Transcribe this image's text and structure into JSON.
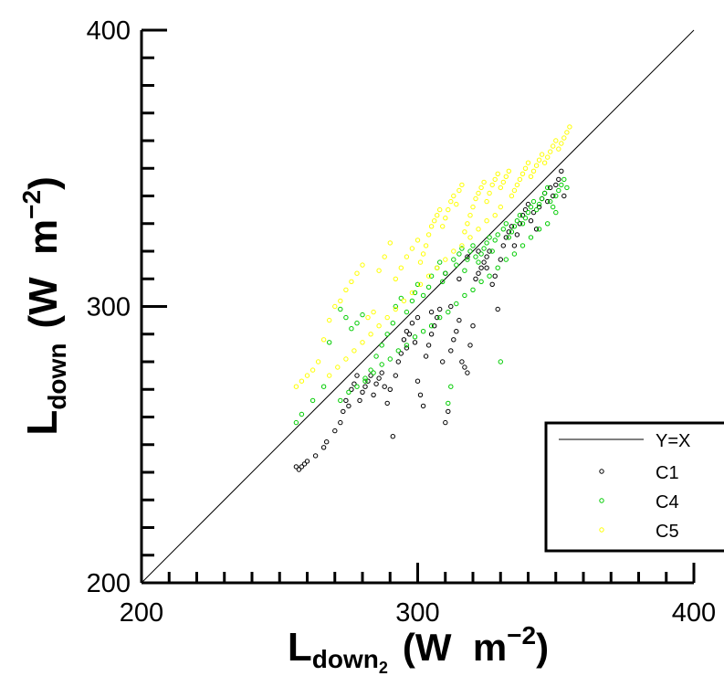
{
  "chart_data": {
    "type": "scatter",
    "xlim": [
      200,
      400
    ],
    "ylim": [
      200,
      400
    ],
    "x_ticks": [
      "200",
      "300",
      "400"
    ],
    "y_ticks": [
      "200",
      "300",
      "400"
    ],
    "xlabel": {
      "main": "L",
      "sub": "down",
      "subsub": "2",
      "unit_open": "(W  m",
      "unit_exp": "−2",
      "unit_close": ")"
    },
    "ylabel": {
      "main": "L",
      "sub": "down",
      "unit_open": "(W  m",
      "unit_exp": "−2",
      "unit_close": ")"
    },
    "reference_line": {
      "name": "Y=X",
      "from": [
        200,
        200
      ],
      "to": [
        400,
        400
      ],
      "color": "#000000"
    },
    "legend_position": "bottom-right",
    "series": [
      {
        "name": "C1",
        "color": "#000000",
        "points": [
          [
            256,
            242
          ],
          [
            257,
            241
          ],
          [
            258,
            242
          ],
          [
            259,
            243
          ],
          [
            260,
            244
          ],
          [
            263,
            246
          ],
          [
            267,
            251
          ],
          [
            266,
            249
          ],
          [
            270,
            255
          ],
          [
            272,
            258
          ],
          [
            273,
            262
          ],
          [
            274,
            266
          ],
          [
            275,
            264
          ],
          [
            276,
            270
          ],
          [
            277,
            272
          ],
          [
            278,
            275
          ],
          [
            279,
            266
          ],
          [
            280,
            269
          ],
          [
            281,
            271
          ],
          [
            282,
            273
          ],
          [
            283,
            275
          ],
          [
            284,
            268
          ],
          [
            285,
            272
          ],
          [
            286,
            274
          ],
          [
            287,
            276
          ],
          [
            288,
            271
          ],
          [
            289,
            265
          ],
          [
            290,
            270
          ],
          [
            291,
            253
          ],
          [
            292,
            275
          ],
          [
            293,
            280
          ],
          [
            294,
            283
          ],
          [
            295,
            288
          ],
          [
            296,
            285
          ],
          [
            297,
            290
          ],
          [
            298,
            294
          ],
          [
            299,
            287
          ],
          [
            300,
            273
          ],
          [
            301,
            268
          ],
          [
            302,
            264
          ],
          [
            303,
            282
          ],
          [
            304,
            286
          ],
          [
            305,
            290
          ],
          [
            306,
            293
          ],
          [
            307,
            296
          ],
          [
            308,
            299
          ],
          [
            309,
            280
          ],
          [
            310,
            258
          ],
          [
            311,
            262
          ],
          [
            312,
            284
          ],
          [
            313,
            288
          ],
          [
            314,
            291
          ],
          [
            315,
            295
          ],
          [
            316,
            280
          ],
          [
            317,
            278
          ],
          [
            318,
            276
          ],
          [
            319,
            286
          ],
          [
            320,
            293
          ],
          [
            321,
            310
          ],
          [
            322,
            312
          ],
          [
            323,
            314
          ],
          [
            324,
            316
          ],
          [
            325,
            318
          ],
          [
            326,
            320
          ],
          [
            327,
            308
          ],
          [
            328,
            311
          ],
          [
            329,
            299
          ],
          [
            330,
            317
          ],
          [
            331,
            322
          ],
          [
            332,
            325
          ],
          [
            333,
            327
          ],
          [
            334,
            329
          ],
          [
            335,
            322
          ],
          [
            336,
            326
          ],
          [
            337,
            330
          ],
          [
            338,
            333
          ],
          [
            339,
            335
          ],
          [
            340,
            337
          ],
          [
            341,
            331
          ],
          [
            342,
            334
          ],
          [
            343,
            328
          ],
          [
            344,
            336
          ],
          [
            345,
            339
          ],
          [
            346,
            341
          ],
          [
            347,
            338
          ],
          [
            348,
            343
          ],
          [
            349,
            340
          ],
          [
            350,
            344
          ],
          [
            351,
            346
          ],
          [
            352,
            349
          ],
          [
            353,
            340
          ],
          [
            318,
            318
          ],
          [
            322,
            320
          ],
          [
            325,
            314
          ],
          [
            310,
            312
          ],
          [
            315,
            310
          ],
          [
            312,
            300
          ],
          [
            305,
            298
          ],
          [
            300,
            296
          ],
          [
            296,
            291
          ]
        ]
      },
      {
        "name": "C4",
        "color": "#00cc00",
        "points": [
          [
            256,
            258
          ],
          [
            258,
            261
          ],
          [
            262,
            266
          ],
          [
            266,
            271
          ],
          [
            268,
            287
          ],
          [
            272,
            299
          ],
          [
            274,
            296
          ],
          [
            276,
            292
          ],
          [
            278,
            294
          ],
          [
            280,
            297
          ],
          [
            281,
            273
          ],
          [
            283,
            277
          ],
          [
            285,
            282
          ],
          [
            287,
            286
          ],
          [
            289,
            290
          ],
          [
            291,
            294
          ],
          [
            292,
            300
          ],
          [
            294,
            303
          ],
          [
            296,
            298
          ],
          [
            298,
            302
          ],
          [
            299,
            305
          ],
          [
            300,
            308
          ],
          [
            302,
            304
          ],
          [
            304,
            307
          ],
          [
            305,
            311
          ],
          [
            307,
            314
          ],
          [
            308,
            316
          ],
          [
            309,
            309
          ],
          [
            310,
            312
          ],
          [
            311,
            265
          ],
          [
            312,
            271
          ],
          [
            313,
            317
          ],
          [
            314,
            315
          ],
          [
            315,
            319
          ],
          [
            316,
            321
          ],
          [
            317,
            313
          ],
          [
            318,
            317
          ],
          [
            319,
            320
          ],
          [
            320,
            322
          ],
          [
            321,
            318
          ],
          [
            322,
            316
          ],
          [
            323,
            319
          ],
          [
            324,
            321
          ],
          [
            325,
            323
          ],
          [
            326,
            325
          ],
          [
            327,
            320
          ],
          [
            328,
            324
          ],
          [
            329,
            326
          ],
          [
            330,
            280
          ],
          [
            331,
            328
          ],
          [
            332,
            330
          ],
          [
            333,
            325
          ],
          [
            334,
            327
          ],
          [
            335,
            329
          ],
          [
            336,
            331
          ],
          [
            337,
            333
          ],
          [
            338,
            330
          ],
          [
            339,
            332
          ],
          [
            340,
            334
          ],
          [
            341,
            336
          ],
          [
            342,
            338
          ],
          [
            343,
            335
          ],
          [
            344,
            337
          ],
          [
            345,
            339
          ],
          [
            346,
            341
          ],
          [
            347,
            343
          ],
          [
            348,
            338
          ],
          [
            349,
            336
          ],
          [
            350,
            340
          ],
          [
            351,
            342
          ],
          [
            352,
            344
          ],
          [
            353,
            346
          ],
          [
            354,
            343
          ],
          [
            350,
            334
          ],
          [
            347,
            330
          ],
          [
            344,
            328
          ],
          [
            341,
            325
          ],
          [
            338,
            322
          ],
          [
            335,
            319
          ],
          [
            332,
            317
          ],
          [
            329,
            314
          ],
          [
            326,
            311
          ],
          [
            323,
            309
          ],
          [
            320,
            306
          ],
          [
            317,
            304
          ],
          [
            314,
            301
          ],
          [
            311,
            298
          ],
          [
            308,
            296
          ],
          [
            305,
            293
          ],
          [
            302,
            291
          ],
          [
            299,
            289
          ],
          [
            296,
            286
          ],
          [
            293,
            284
          ],
          [
            290,
            281
          ],
          [
            287,
            279
          ],
          [
            284,
            276
          ],
          [
            281,
            274
          ],
          [
            278,
            271
          ],
          [
            275,
            269
          ],
          [
            272,
            266
          ]
        ]
      },
      {
        "name": "C5",
        "color": "#ffff00",
        "points": [
          [
            256,
            271
          ],
          [
            258,
            273
          ],
          [
            260,
            275
          ],
          [
            262,
            277
          ],
          [
            264,
            280
          ],
          [
            266,
            288
          ],
          [
            268,
            295
          ],
          [
            270,
            300
          ],
          [
            272,
            302
          ],
          [
            274,
            306
          ],
          [
            276,
            309
          ],
          [
            278,
            312
          ],
          [
            280,
            315
          ],
          [
            282,
            296
          ],
          [
            284,
            298
          ],
          [
            286,
            313
          ],
          [
            288,
            318
          ],
          [
            290,
            323
          ],
          [
            292,
            310
          ],
          [
            294,
            314
          ],
          [
            296,
            318
          ],
          [
            298,
            321
          ],
          [
            300,
            324
          ],
          [
            301,
            316
          ],
          [
            302,
            319
          ],
          [
            303,
            322
          ],
          [
            304,
            326
          ],
          [
            305,
            329
          ],
          [
            306,
            331
          ],
          [
            307,
            333
          ],
          [
            308,
            335
          ],
          [
            309,
            329
          ],
          [
            310,
            332
          ],
          [
            311,
            335
          ],
          [
            312,
            338
          ],
          [
            313,
            340
          ],
          [
            314,
            337
          ],
          [
            315,
            342
          ],
          [
            316,
            344
          ],
          [
            317,
            327
          ],
          [
            318,
            330
          ],
          [
            319,
            333
          ],
          [
            320,
            336
          ],
          [
            321,
            339
          ],
          [
            322,
            341
          ],
          [
            323,
            343
          ],
          [
            324,
            345
          ],
          [
            325,
            338
          ],
          [
            326,
            341
          ],
          [
            327,
            344
          ],
          [
            328,
            346
          ],
          [
            329,
            348
          ],
          [
            330,
            343
          ],
          [
            331,
            345
          ],
          [
            332,
            347
          ],
          [
            333,
            349
          ],
          [
            334,
            340
          ],
          [
            335,
            342
          ],
          [
            336,
            344
          ],
          [
            337,
            346
          ],
          [
            338,
            348
          ],
          [
            339,
            350
          ],
          [
            340,
            352
          ],
          [
            341,
            347
          ],
          [
            342,
            349
          ],
          [
            343,
            351
          ],
          [
            344,
            353
          ],
          [
            345,
            355
          ],
          [
            346,
            352
          ],
          [
            347,
            354
          ],
          [
            348,
            356
          ],
          [
            349,
            358
          ],
          [
            350,
            360
          ],
          [
            351,
            357
          ],
          [
            352,
            359
          ],
          [
            353,
            361
          ],
          [
            354,
            363
          ],
          [
            355,
            365
          ],
          [
            330,
            336
          ],
          [
            328,
            333
          ],
          [
            325,
            331
          ],
          [
            322,
            328
          ],
          [
            319,
            325
          ],
          [
            316,
            322
          ],
          [
            313,
            320
          ],
          [
            310,
            317
          ],
          [
            307,
            314
          ],
          [
            304,
            311
          ],
          [
            301,
            308
          ],
          [
            298,
            305
          ],
          [
            295,
            302
          ],
          [
            292,
            299
          ],
          [
            289,
            296
          ],
          [
            286,
            293
          ],
          [
            283,
            290
          ],
          [
            280,
            287
          ],
          [
            277,
            284
          ],
          [
            274,
            281
          ],
          [
            271,
            278
          ],
          [
            268,
            275
          ]
        ]
      }
    ]
  }
}
